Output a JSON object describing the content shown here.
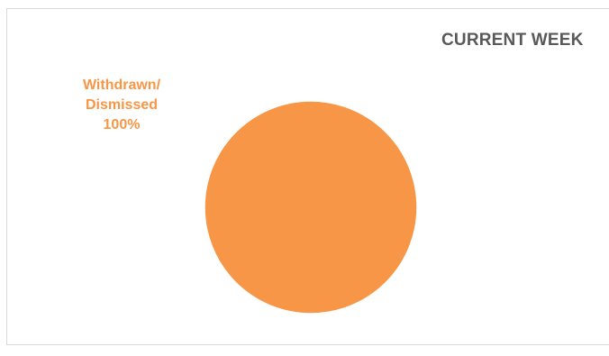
{
  "chart_data": {
    "type": "pie",
    "title": "CURRENT WEEK",
    "categories": [
      "Withdrawn/ Dismissed"
    ],
    "values": [
      100
    ],
    "units": "%",
    "slices": [
      {
        "label_line1": "Withdrawn/",
        "label_line2": "Dismissed",
        "value": 100,
        "value_label": "100%",
        "color": "#f79646"
      }
    ],
    "legend": "none",
    "data_labels": "outside-top-left"
  }
}
